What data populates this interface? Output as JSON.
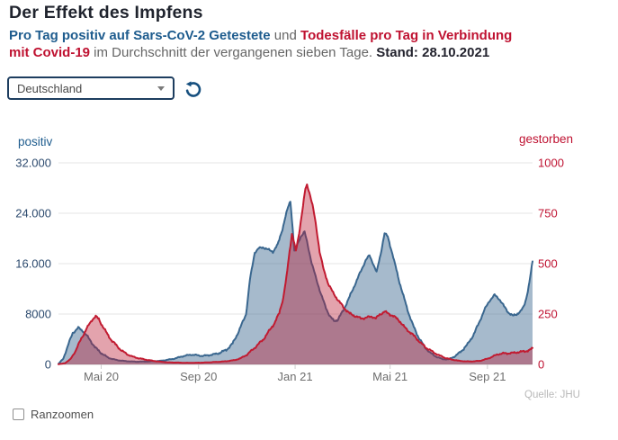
{
  "header": {
    "title": "Der Effekt des Impfens"
  },
  "subtitle": {
    "line1": [
      {
        "text": "Pro Tag positiv auf Sars-CoV-2 Getestete",
        "style": "blue"
      },
      {
        "text": " und ",
        "style": "gray"
      },
      {
        "text": "Todesfälle pro Tag in Verbindung",
        "style": "red"
      }
    ],
    "line2": [
      {
        "text": "mit Covid-19",
        "style": "red"
      },
      {
        "text": " im Durchschnitt der vergangenen sieben Tage. ",
        "style": "gray"
      },
      {
        "text": "Stand: 28.10.2021",
        "style": "dark"
      }
    ]
  },
  "controls": {
    "region_select": {
      "value": "Deutschland",
      "options": [
        "Deutschland"
      ]
    },
    "reset_icon": "rotate-ccw-icon",
    "zoom_checkbox": {
      "label": "Ranzoomen",
      "checked": false
    }
  },
  "source": "Quelle: JHU",
  "colors": {
    "accent_blue": "#1e5c8e",
    "accent_red": "#bf1231",
    "series_blue_stroke": "#3a678f",
    "series_blue_fill": "rgba(58,103,143,0.45)",
    "series_red_stroke": "#c11b31",
    "series_red_fill": "rgba(186,26,50,0.40)",
    "grid": "#e5e5e5",
    "axis_line": "#cfcfcf",
    "left_tick_color": "#2c4a6e",
    "right_tick_color": "#bf1231",
    "x_tick_color": "#6e6e6e"
  },
  "chart_data": {
    "type": "area",
    "title": "Der Effekt des Impfens",
    "legend_position": "none",
    "grid": true,
    "left_axis": {
      "label": "positiv",
      "max": 32000,
      "ticks": [
        {
          "v": 32000,
          "label": "32.000"
        },
        {
          "v": 24000,
          "label": "24.000"
        },
        {
          "v": 16000,
          "label": "16.000"
        },
        {
          "v": 8000,
          "label": "8000"
        },
        {
          "v": 0,
          "label": "0"
        }
      ]
    },
    "right_axis": {
      "label": "gestorben",
      "max": 1000,
      "ticks": [
        {
          "v": 1000,
          "label": "1000"
        },
        {
          "v": 750,
          "label": "750"
        },
        {
          "v": 500,
          "label": "500"
        },
        {
          "v": 250,
          "label": "250"
        },
        {
          "v": 0,
          "label": "0"
        }
      ]
    },
    "x_axis": {
      "start": "2020-03-08",
      "end": "2021-10-28",
      "tick_dates": [
        "2020-05-01",
        "2020-09-01",
        "2021-01-01",
        "2021-05-01",
        "2021-09-01"
      ],
      "tick_labels": [
        "Mai 20",
        "Sep 20",
        "Jan 21",
        "Mai 21",
        "Sep 21"
      ]
    },
    "series": [
      {
        "name": "positiv",
        "axis": "left",
        "points": [
          [
            "2020-03-08",
            100
          ],
          [
            "2020-03-14",
            900
          ],
          [
            "2020-03-20",
            3000
          ],
          [
            "2020-03-26",
            5000
          ],
          [
            "2020-04-02",
            5800
          ],
          [
            "2020-04-09",
            5200
          ],
          [
            "2020-04-16",
            4000
          ],
          [
            "2020-04-24",
            2600
          ],
          [
            "2020-05-01",
            1800
          ],
          [
            "2020-05-10",
            1050
          ],
          [
            "2020-05-20",
            700
          ],
          [
            "2020-06-01",
            520
          ],
          [
            "2020-06-14",
            430
          ],
          [
            "2020-07-01",
            470
          ],
          [
            "2020-07-15",
            560
          ],
          [
            "2020-08-01",
            900
          ],
          [
            "2020-08-12",
            1300
          ],
          [
            "2020-08-23",
            1560
          ],
          [
            "2020-09-06",
            1350
          ],
          [
            "2020-09-16",
            1500
          ],
          [
            "2020-09-26",
            1750
          ],
          [
            "2020-10-06",
            2300
          ],
          [
            "2020-10-14",
            3300
          ],
          [
            "2020-10-22",
            5300
          ],
          [
            "2020-10-31",
            8000
          ],
          [
            "2020-11-05",
            13500
          ],
          [
            "2020-11-11",
            17800
          ],
          [
            "2020-11-16",
            18400
          ],
          [
            "2020-11-22",
            18600
          ],
          [
            "2020-11-28",
            18200
          ],
          [
            "2020-12-04",
            17900
          ],
          [
            "2020-12-10",
            19000
          ],
          [
            "2020-12-16",
            21500
          ],
          [
            "2020-12-22",
            24500
          ],
          [
            "2020-12-26",
            26000
          ],
          [
            "2020-12-29",
            21500
          ],
          [
            "2020-12-31",
            18000
          ],
          [
            "2021-01-03",
            18800
          ],
          [
            "2021-01-08",
            20300
          ],
          [
            "2021-01-13",
            21000
          ],
          [
            "2021-01-17",
            19000
          ],
          [
            "2021-01-22",
            16000
          ],
          [
            "2021-01-28",
            13500
          ],
          [
            "2021-02-03",
            11000
          ],
          [
            "2021-02-09",
            9000
          ],
          [
            "2021-02-14",
            7600
          ],
          [
            "2021-02-19",
            6900
          ],
          [
            "2021-02-24",
            7100
          ],
          [
            "2021-03-03",
            8600
          ],
          [
            "2021-03-10",
            10500
          ],
          [
            "2021-03-17",
            12500
          ],
          [
            "2021-03-24",
            14500
          ],
          [
            "2021-03-31",
            16500
          ],
          [
            "2021-04-05",
            17300
          ],
          [
            "2021-04-09",
            16200
          ],
          [
            "2021-04-14",
            14600
          ],
          [
            "2021-04-19",
            17500
          ],
          [
            "2021-04-24",
            20800
          ],
          [
            "2021-04-28",
            20300
          ],
          [
            "2021-05-03",
            18000
          ],
          [
            "2021-05-08",
            15500
          ],
          [
            "2021-05-13",
            13000
          ],
          [
            "2021-05-18",
            10800
          ],
          [
            "2021-05-24",
            8300
          ],
          [
            "2021-05-30",
            6200
          ],
          [
            "2021-06-06",
            4300
          ],
          [
            "2021-06-13",
            2900
          ],
          [
            "2021-06-20",
            1900
          ],
          [
            "2021-06-28",
            1250
          ],
          [
            "2021-07-06",
            850
          ],
          [
            "2021-07-14",
            800
          ],
          [
            "2021-07-22",
            1300
          ],
          [
            "2021-07-30",
            2100
          ],
          [
            "2021-08-07",
            3200
          ],
          [
            "2021-08-14",
            4600
          ],
          [
            "2021-08-21",
            6500
          ],
          [
            "2021-08-28",
            8600
          ],
          [
            "2021-09-04",
            10200
          ],
          [
            "2021-09-10",
            11000
          ],
          [
            "2021-09-16",
            10400
          ],
          [
            "2021-09-22",
            9200
          ],
          [
            "2021-09-28",
            8200
          ],
          [
            "2021-10-03",
            7700
          ],
          [
            "2021-10-08",
            8000
          ],
          [
            "2021-10-13",
            8400
          ],
          [
            "2021-10-17",
            9200
          ],
          [
            "2021-10-21",
            11000
          ],
          [
            "2021-10-24",
            13000
          ],
          [
            "2021-10-28",
            16300
          ]
        ]
      },
      {
        "name": "gestorben",
        "axis": "right",
        "points": [
          [
            "2020-03-08",
            1
          ],
          [
            "2020-03-16",
            6
          ],
          [
            "2020-03-23",
            25
          ],
          [
            "2020-03-30",
            70
          ],
          [
            "2020-04-06",
            130
          ],
          [
            "2020-04-13",
            180
          ],
          [
            "2020-04-19",
            220
          ],
          [
            "2020-04-24",
            238
          ],
          [
            "2020-04-28",
            225
          ],
          [
            "2020-05-02",
            195
          ],
          [
            "2020-05-08",
            155
          ],
          [
            "2020-05-14",
            120
          ],
          [
            "2020-05-20",
            95
          ],
          [
            "2020-05-27",
            68
          ],
          [
            "2020-06-03",
            50
          ],
          [
            "2020-06-10",
            38
          ],
          [
            "2020-06-18",
            30
          ],
          [
            "2020-06-26",
            24
          ],
          [
            "2020-07-05",
            18
          ],
          [
            "2020-07-15",
            13
          ],
          [
            "2020-07-25",
            10
          ],
          [
            "2020-08-05",
            9
          ],
          [
            "2020-08-16",
            8
          ],
          [
            "2020-08-27",
            8
          ],
          [
            "2020-09-07",
            9
          ],
          [
            "2020-09-17",
            11
          ],
          [
            "2020-09-27",
            13
          ],
          [
            "2020-10-07",
            16
          ],
          [
            "2020-10-16",
            21
          ],
          [
            "2020-10-24",
            30
          ],
          [
            "2020-11-01",
            48
          ],
          [
            "2020-11-08",
            72
          ],
          [
            "2020-11-15",
            98
          ],
          [
            "2020-11-22",
            125
          ],
          [
            "2020-11-29",
            165
          ],
          [
            "2020-12-06",
            205
          ],
          [
            "2020-12-12",
            255
          ],
          [
            "2020-12-17",
            330
          ],
          [
            "2020-12-21",
            430
          ],
          [
            "2020-12-25",
            560
          ],
          [
            "2020-12-28",
            650
          ],
          [
            "2020-12-31",
            600
          ],
          [
            "2021-01-02",
            560
          ],
          [
            "2021-01-06",
            650
          ],
          [
            "2021-01-10",
            760
          ],
          [
            "2021-01-14",
            870
          ],
          [
            "2021-01-16",
            890
          ],
          [
            "2021-01-19",
            855
          ],
          [
            "2021-01-23",
            790
          ],
          [
            "2021-01-27",
            700
          ],
          [
            "2021-02-01",
            560
          ],
          [
            "2021-02-06",
            470
          ],
          [
            "2021-02-12",
            400
          ],
          [
            "2021-02-18",
            355
          ],
          [
            "2021-02-25",
            315
          ],
          [
            "2021-03-04",
            280
          ],
          [
            "2021-03-11",
            252
          ],
          [
            "2021-03-18",
            240
          ],
          [
            "2021-03-25",
            228
          ],
          [
            "2021-04-01",
            232
          ],
          [
            "2021-04-08",
            238
          ],
          [
            "2021-04-13",
            228
          ],
          [
            "2021-04-18",
            248
          ],
          [
            "2021-04-24",
            262
          ],
          [
            "2021-04-29",
            252
          ],
          [
            "2021-05-05",
            240
          ],
          [
            "2021-05-12",
            220
          ],
          [
            "2021-05-19",
            185
          ],
          [
            "2021-05-26",
            160
          ],
          [
            "2021-06-02",
            135
          ],
          [
            "2021-06-09",
            105
          ],
          [
            "2021-06-16",
            82
          ],
          [
            "2021-06-24",
            62
          ],
          [
            "2021-07-02",
            45
          ],
          [
            "2021-07-10",
            32
          ],
          [
            "2021-07-18",
            24
          ],
          [
            "2021-07-27",
            18
          ],
          [
            "2021-08-05",
            15
          ],
          [
            "2021-08-14",
            15
          ],
          [
            "2021-08-23",
            18
          ],
          [
            "2021-09-01",
            28
          ],
          [
            "2021-09-08",
            40
          ],
          [
            "2021-09-14",
            50
          ],
          [
            "2021-09-21",
            55
          ],
          [
            "2021-09-28",
            55
          ],
          [
            "2021-10-05",
            58
          ],
          [
            "2021-10-12",
            62
          ],
          [
            "2021-10-19",
            66
          ],
          [
            "2021-10-24",
            70
          ],
          [
            "2021-10-28",
            80
          ]
        ]
      }
    ]
  }
}
